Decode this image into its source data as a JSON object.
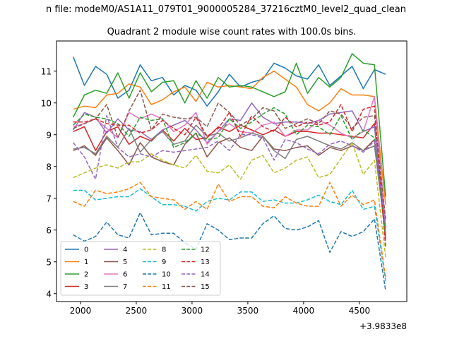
{
  "suptitle": "n file: modeM0/AS1A11_079T01_9000005284_37216cztM0_level2_quad_clean",
  "chart_data": {
    "type": "line",
    "title": "Quadrant 2 module wise count rates with 100.0s bins.",
    "xlabel": "",
    "ylabel": "",
    "x_offset_label": "+3.9833e8",
    "x_offset": 398330000,
    "xlim": [
      1785,
      4925
    ],
    "ylim": [
      3.75,
      11.95
    ],
    "xticks": [
      2000,
      2500,
      3000,
      3500,
      4000,
      4500
    ],
    "yticks": [
      4,
      5,
      6,
      7,
      8,
      9,
      10,
      11
    ],
    "grid": false,
    "legend_position": "lower-left",
    "x": [
      1935,
      2035,
      2135,
      2235,
      2335,
      2435,
      2535,
      2635,
      2735,
      2835,
      2935,
      3035,
      3135,
      3235,
      3335,
      3435,
      3535,
      3635,
      3735,
      3835,
      3935,
      4035,
      4135,
      4235,
      4335,
      4435,
      4535,
      4635,
      4735
    ],
    "series": [
      {
        "name": "0",
        "color": "#1f77b4",
        "dash": "solid",
        "values": [
          11.45,
          10.55,
          11.15,
          10.9,
          10.15,
          10.4,
          11.2,
          10.7,
          10.8,
          10.25,
          10.55,
          10.4,
          9.9,
          10.35,
          10.9,
          10.5,
          10.65,
          10.75,
          11.25,
          11.1,
          10.85,
          10.75,
          11.2,
          10.55,
          10.85,
          11.15,
          10.45,
          11.05,
          10.9
        ]
      },
      {
        "name": "1",
        "color": "#ff7f0e",
        "dash": "solid",
        "values": [
          9.8,
          9.9,
          9.85,
          10.25,
          10.3,
          10.6,
          10.5,
          9.95,
          10.1,
          10.35,
          10.5,
          10.05,
          10.65,
          10.5,
          10.55,
          10.5,
          10.45,
          10.8,
          11.0,
          10.75,
          10.5,
          9.95,
          9.75,
          10.0,
          10.45,
          10.25,
          10.25,
          10.2,
          6.8
        ]
      },
      {
        "name": "2",
        "color": "#2ca02c",
        "dash": "solid",
        "values": [
          9.55,
          10.25,
          10.4,
          10.3,
          10.95,
          10.15,
          10.95,
          10.35,
          10.65,
          10.7,
          10.0,
          10.7,
          10.15,
          10.8,
          10.5,
          10.55,
          10.5,
          10.35,
          10.2,
          10.35,
          11.25,
          10.3,
          10.8,
          10.5,
          10.8,
          11.55,
          11.25,
          11.2,
          7.05
        ]
      },
      {
        "name": "3",
        "color": "#d62728",
        "dash": "solid",
        "values": [
          9.1,
          9.25,
          8.5,
          9.1,
          9.25,
          8.7,
          8.95,
          8.8,
          9.15,
          8.8,
          9.2,
          8.85,
          8.9,
          9.25,
          9.1,
          9.3,
          9.15,
          9.0,
          9.15,
          8.95,
          9.1,
          9.1,
          9.05,
          9.05,
          9.0,
          8.95,
          8.9,
          9.35,
          5.7
        ]
      },
      {
        "name": "4",
        "color": "#9467bd",
        "dash": "solid",
        "values": [
          9.15,
          9.7,
          9.55,
          9.05,
          9.5,
          9.15,
          9.1,
          8.85,
          9.15,
          9.3,
          9.45,
          9.15,
          8.75,
          9.1,
          9.5,
          9.45,
          10.0,
          9.55,
          9.35,
          9.4,
          9.4,
          9.35,
          9.45,
          9.65,
          9.7,
          9.75,
          9.1,
          9.25,
          6.05
        ]
      },
      {
        "name": "5",
        "color": "#8c564b",
        "dash": "solid",
        "values": [
          8.5,
          8.65,
          8.35,
          8.9,
          8.5,
          8.05,
          8.75,
          8.3,
          8.15,
          8.05,
          8.7,
          9.05,
          8.3,
          8.75,
          8.9,
          8.6,
          8.5,
          8.95,
          8.55,
          8.5,
          8.6,
          8.65,
          8.35,
          8.6,
          8.5,
          8.65,
          8.5,
          8.85,
          5.75
        ]
      },
      {
        "name": "6",
        "color": "#e377c2",
        "dash": "solid",
        "values": [
          9.25,
          9.35,
          9.5,
          9.2,
          8.9,
          9.7,
          9.5,
          9.65,
          9.5,
          9.1,
          9.3,
          9.7,
          8.7,
          9.1,
          9.35,
          9.1,
          9.05,
          9.3,
          9.4,
          8.95,
          9.15,
          9.15,
          9.45,
          9.3,
          9.05,
          8.9,
          9.1,
          10.2,
          6.15
        ]
      },
      {
        "name": "7",
        "color": "#7f7f7f",
        "dash": "solid",
        "values": [
          8.55,
          8.6,
          8.4,
          8.95,
          8.6,
          9.2,
          8.45,
          8.85,
          9.1,
          8.7,
          8.8,
          9.3,
          8.95,
          9.05,
          8.8,
          8.9,
          9.05,
          8.95,
          8.5,
          8.25,
          8.85,
          8.95,
          8.8,
          8.65,
          8.55,
          8.75,
          8.5,
          8.65,
          5.85
        ]
      },
      {
        "name": "8",
        "color": "#bcbd22",
        "dash": "dashed",
        "values": [
          7.65,
          7.8,
          7.95,
          8.05,
          7.95,
          8.15,
          8.15,
          8.4,
          8.2,
          8.05,
          7.95,
          8.35,
          7.85,
          7.8,
          8.05,
          7.6,
          8.2,
          8.35,
          7.8,
          7.95,
          8.2,
          8.3,
          7.65,
          7.75,
          8.25,
          8.75,
          7.75,
          8.2,
          5.15
        ]
      },
      {
        "name": "9",
        "color": "#17becf",
        "dash": "dashed",
        "values": [
          7.25,
          7.25,
          6.95,
          7.0,
          7.05,
          7.05,
          7.3,
          7.05,
          6.8,
          6.8,
          6.75,
          6.6,
          6.9,
          7.0,
          6.95,
          7.2,
          7.2,
          6.9,
          6.95,
          6.85,
          6.85,
          6.95,
          7.1,
          6.9,
          6.8,
          7.25,
          6.65,
          6.75,
          4.4
        ]
      },
      {
        "name": "10",
        "color": "#1f77b4",
        "dash": "dashed",
        "values": [
          5.85,
          5.65,
          5.8,
          6.25,
          5.85,
          5.75,
          6.55,
          5.85,
          5.9,
          5.9,
          5.6,
          5.4,
          6.2,
          6.0,
          5.7,
          5.75,
          5.75,
          6.2,
          6.45,
          6.05,
          6.0,
          6.1,
          6.3,
          5.3,
          5.95,
          5.8,
          5.95,
          6.35,
          4.1
        ]
      },
      {
        "name": "11",
        "color": "#ff7f0e",
        "dash": "dashed",
        "values": [
          6.9,
          6.75,
          7.25,
          7.15,
          7.2,
          7.3,
          7.5,
          7.05,
          7.0,
          6.95,
          6.65,
          6.9,
          6.65,
          7.45,
          6.9,
          7.05,
          7.05,
          6.75,
          6.7,
          7.05,
          6.85,
          6.75,
          6.75,
          7.5,
          6.75,
          7.1,
          6.8,
          6.95,
          4.5
        ]
      },
      {
        "name": "12",
        "color": "#2ca02c",
        "dash": "dashed",
        "values": [
          9.3,
          9.65,
          9.55,
          9.5,
          9.35,
          8.95,
          9.55,
          9.45,
          9.5,
          8.6,
          8.75,
          9.05,
          8.85,
          8.9,
          9.5,
          9.2,
          9.4,
          9.65,
          9.85,
          9.65,
          9.0,
          9.3,
          9.25,
          9.0,
          9.6,
          8.85,
          9.15,
          8.9,
          5.85
        ]
      },
      {
        "name": "13",
        "color": "#d62728",
        "dash": "dashed",
        "values": [
          9.4,
          9.4,
          9.5,
          9.35,
          9.3,
          9.3,
          9.05,
          9.15,
          9.45,
          9.2,
          9.0,
          9.55,
          8.95,
          9.2,
          9.7,
          8.95,
          9.6,
          9.25,
          9.1,
          9.55,
          9.25,
          9.4,
          9.3,
          9.4,
          9.95,
          9.1,
          9.8,
          9.9,
          5.45
        ]
      },
      {
        "name": "14",
        "color": "#9467bd",
        "dash": "dashed",
        "values": [
          8.75,
          8.3,
          7.6,
          9.6,
          8.6,
          8.3,
          8.4,
          8.3,
          8.5,
          8.45,
          8.5,
          8.55,
          8.6,
          8.8,
          8.5,
          9.0,
          9.0,
          8.9,
          8.2,
          8.85,
          8.75,
          8.55,
          8.4,
          8.7,
          8.8,
          8.65,
          8.45,
          8.8,
          6.1
        ]
      },
      {
        "name": "15",
        "color": "#8c564b",
        "dash": "dashed",
        "values": [
          9.2,
          9.35,
          9.5,
          9.95,
          8.9,
          9.75,
          10.4,
          9.15,
          9.65,
          9.55,
          9.5,
          9.55,
          9.25,
          10.0,
          9.7,
          9.3,
          9.5,
          9.85,
          9.75,
          9.2,
          9.35,
          9.5,
          9.35,
          9.75,
          9.65,
          9.2,
          9.55,
          9.6,
          6.35
        ]
      }
    ]
  }
}
